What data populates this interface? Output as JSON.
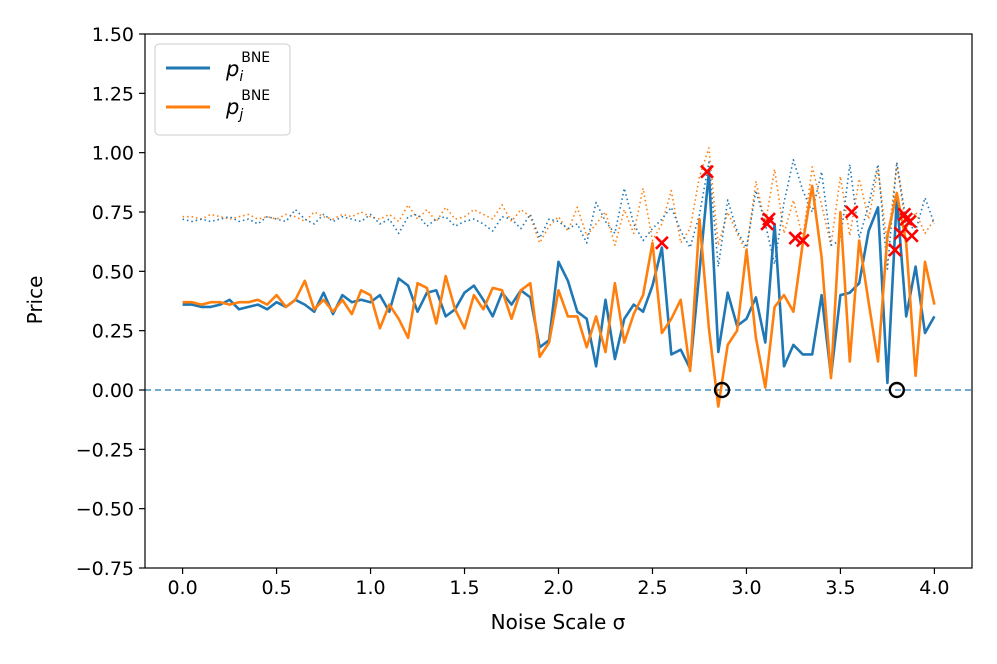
{
  "chart_data": {
    "type": "line",
    "xlabel": "Noise Scale σ",
    "ylabel": "Price",
    "xlim": [
      -0.2,
      4.2
    ],
    "ylim": [
      -0.75,
      1.5
    ],
    "xticks": [
      "0.0",
      "0.5",
      "1.0",
      "1.5",
      "2.0",
      "2.5",
      "3.0",
      "3.5",
      "4.0"
    ],
    "xtick_values": [
      0,
      0.5,
      1,
      1.5,
      2,
      2.5,
      3,
      3.5,
      4
    ],
    "yticks": [
      "1.50",
      "1.25",
      "1.00",
      "0.75",
      "0.50",
      "0.25",
      "0.00",
      "−0.25",
      "−0.50",
      "−0.75"
    ],
    "ytick_values": [
      1.5,
      1.25,
      1.0,
      0.75,
      0.5,
      0.25,
      0,
      -0.25,
      -0.5,
      -0.75
    ],
    "legend": {
      "position": "top-left",
      "entries": [
        {
          "base": "p",
          "sub": "i",
          "sup": "BNE",
          "color": "#1f77b4"
        },
        {
          "base": "p",
          "sub": "j",
          "sup": "BNE",
          "color": "#ff7f0e"
        }
      ]
    },
    "colors": {
      "blue": "#1f77b4",
      "orange": "#ff7f0e",
      "marker_x": "#ff0000",
      "marker_o": "#000000",
      "zero_line": "#1f77b4"
    },
    "series": [
      {
        "name": "p_i BNE",
        "style": "solid",
        "color": "#1f77b4",
        "x": [
          0.0,
          0.05,
          0.1,
          0.15,
          0.2,
          0.25,
          0.3,
          0.35,
          0.4,
          0.45,
          0.5,
          0.55,
          0.6,
          0.65,
          0.7,
          0.75,
          0.8,
          0.85,
          0.9,
          0.95,
          1.0,
          1.05,
          1.1,
          1.15,
          1.2,
          1.25,
          1.3,
          1.35,
          1.4,
          1.45,
          1.5,
          1.55,
          1.6,
          1.65,
          1.7,
          1.75,
          1.8,
          1.85,
          1.9,
          1.95,
          2.0,
          2.05,
          2.1,
          2.15,
          2.2,
          2.25,
          2.3,
          2.35,
          2.4,
          2.45,
          2.5,
          2.55,
          2.6,
          2.65,
          2.7,
          2.75,
          2.8,
          2.85,
          2.9,
          2.95,
          3.0,
          3.05,
          3.1,
          3.15,
          3.2,
          3.25,
          3.3,
          3.35,
          3.4,
          3.45,
          3.5,
          3.55,
          3.6,
          3.65,
          3.7,
          3.75,
          3.8,
          3.85,
          3.9,
          3.95,
          4.0
        ],
        "y": [
          0.36,
          0.36,
          0.35,
          0.35,
          0.36,
          0.38,
          0.34,
          0.35,
          0.36,
          0.34,
          0.37,
          0.35,
          0.38,
          0.36,
          0.33,
          0.41,
          0.32,
          0.4,
          0.37,
          0.38,
          0.37,
          0.4,
          0.33,
          0.47,
          0.44,
          0.33,
          0.41,
          0.42,
          0.31,
          0.34,
          0.41,
          0.44,
          0.38,
          0.31,
          0.41,
          0.36,
          0.42,
          0.39,
          0.18,
          0.21,
          0.54,
          0.46,
          0.33,
          0.3,
          0.1,
          0.38,
          0.13,
          0.3,
          0.36,
          0.33,
          0.44,
          0.6,
          0.15,
          0.17,
          0.09,
          0.5,
          0.92,
          0.16,
          0.41,
          0.27,
          0.3,
          0.39,
          0.2,
          0.7,
          0.1,
          0.19,
          0.15,
          0.15,
          0.4,
          0.06,
          0.4,
          0.41,
          0.45,
          0.67,
          0.77,
          0.03,
          0.81,
          0.31,
          0.52,
          0.24,
          0.31
        ]
      },
      {
        "name": "p_j BNE",
        "style": "solid",
        "color": "#ff7f0e",
        "x": [
          0.0,
          0.05,
          0.1,
          0.15,
          0.2,
          0.25,
          0.3,
          0.35,
          0.4,
          0.45,
          0.5,
          0.55,
          0.6,
          0.65,
          0.7,
          0.75,
          0.8,
          0.85,
          0.9,
          0.95,
          1.0,
          1.05,
          1.1,
          1.15,
          1.2,
          1.25,
          1.3,
          1.35,
          1.4,
          1.45,
          1.5,
          1.55,
          1.6,
          1.65,
          1.7,
          1.75,
          1.8,
          1.85,
          1.9,
          1.95,
          2.0,
          2.05,
          2.1,
          2.15,
          2.2,
          2.25,
          2.3,
          2.35,
          2.4,
          2.45,
          2.5,
          2.55,
          2.6,
          2.65,
          2.7,
          2.75,
          2.8,
          2.85,
          2.9,
          2.95,
          3.0,
          3.05,
          3.1,
          3.15,
          3.2,
          3.25,
          3.3,
          3.35,
          3.4,
          3.45,
          3.5,
          3.55,
          3.6,
          3.65,
          3.7,
          3.75,
          3.8,
          3.85,
          3.9,
          3.95,
          4.0
        ],
        "y": [
          0.37,
          0.37,
          0.36,
          0.37,
          0.37,
          0.36,
          0.37,
          0.37,
          0.38,
          0.36,
          0.4,
          0.35,
          0.38,
          0.46,
          0.34,
          0.38,
          0.33,
          0.38,
          0.32,
          0.42,
          0.4,
          0.26,
          0.36,
          0.3,
          0.22,
          0.45,
          0.43,
          0.28,
          0.48,
          0.34,
          0.26,
          0.4,
          0.34,
          0.43,
          0.42,
          0.3,
          0.42,
          0.45,
          0.14,
          0.2,
          0.42,
          0.31,
          0.31,
          0.18,
          0.31,
          0.16,
          0.45,
          0.2,
          0.32,
          0.4,
          0.62,
          0.24,
          0.3,
          0.38,
          0.08,
          0.72,
          0.26,
          -0.07,
          0.19,
          0.25,
          0.59,
          0.22,
          0.01,
          0.35,
          0.4,
          0.33,
          0.62,
          0.86,
          0.56,
          0.05,
          0.75,
          0.12,
          0.63,
          0.37,
          0.12,
          0.65,
          0.83,
          0.62,
          0.06,
          0.54,
          0.36
        ]
      },
      {
        "name": "p_i dotted",
        "style": "dotted",
        "color": "#1f77b4",
        "x": [
          0.0,
          0.05,
          0.1,
          0.15,
          0.2,
          0.25,
          0.3,
          0.35,
          0.4,
          0.45,
          0.5,
          0.55,
          0.6,
          0.65,
          0.7,
          0.75,
          0.8,
          0.85,
          0.9,
          0.95,
          1.0,
          1.05,
          1.1,
          1.15,
          1.2,
          1.25,
          1.3,
          1.35,
          1.4,
          1.45,
          1.5,
          1.55,
          1.6,
          1.65,
          1.7,
          1.75,
          1.8,
          1.85,
          1.9,
          1.95,
          2.0,
          2.05,
          2.1,
          2.15,
          2.2,
          2.25,
          2.3,
          2.35,
          2.4,
          2.45,
          2.5,
          2.55,
          2.6,
          2.65,
          2.7,
          2.75,
          2.8,
          2.85,
          2.9,
          2.95,
          3.0,
          3.05,
          3.1,
          3.15,
          3.2,
          3.25,
          3.3,
          3.35,
          3.4,
          3.45,
          3.5,
          3.55,
          3.6,
          3.65,
          3.7,
          3.75,
          3.8,
          3.85,
          3.9,
          3.95,
          4.0
        ],
        "y": [
          0.72,
          0.71,
          0.72,
          0.71,
          0.72,
          0.73,
          0.71,
          0.72,
          0.7,
          0.73,
          0.72,
          0.71,
          0.76,
          0.72,
          0.7,
          0.74,
          0.71,
          0.73,
          0.72,
          0.71,
          0.74,
          0.7,
          0.72,
          0.66,
          0.73,
          0.74,
          0.69,
          0.72,
          0.73,
          0.69,
          0.71,
          0.72,
          0.7,
          0.67,
          0.73,
          0.72,
          0.68,
          0.74,
          0.64,
          0.72,
          0.71,
          0.68,
          0.7,
          0.62,
          0.79,
          0.71,
          0.66,
          0.85,
          0.7,
          0.63,
          0.68,
          0.72,
          0.77,
          0.67,
          0.6,
          0.74,
          0.96,
          0.52,
          0.8,
          0.67,
          0.6,
          0.84,
          0.7,
          0.53,
          0.79,
          0.97,
          0.84,
          0.75,
          0.92,
          0.61,
          0.63,
          0.95,
          0.64,
          0.78,
          0.95,
          0.51,
          0.96,
          0.71,
          0.67,
          0.81,
          0.7
        ]
      },
      {
        "name": "p_j dotted",
        "style": "dotted",
        "color": "#ff7f0e",
        "x": [
          0.0,
          0.05,
          0.1,
          0.15,
          0.2,
          0.25,
          0.3,
          0.35,
          0.4,
          0.45,
          0.5,
          0.55,
          0.6,
          0.65,
          0.7,
          0.75,
          0.8,
          0.85,
          0.9,
          0.95,
          1.0,
          1.05,
          1.1,
          1.15,
          1.2,
          1.25,
          1.3,
          1.35,
          1.4,
          1.45,
          1.5,
          1.55,
          1.6,
          1.65,
          1.7,
          1.75,
          1.8,
          1.85,
          1.9,
          1.95,
          2.0,
          2.05,
          2.1,
          2.15,
          2.2,
          2.25,
          2.3,
          2.35,
          2.4,
          2.45,
          2.5,
          2.55,
          2.6,
          2.65,
          2.7,
          2.75,
          2.8,
          2.85,
          2.9,
          2.95,
          3.0,
          3.05,
          3.1,
          3.15,
          3.2,
          3.25,
          3.3,
          3.35,
          3.4,
          3.45,
          3.5,
          3.55,
          3.6,
          3.65,
          3.7,
          3.75,
          3.8,
          3.85,
          3.9,
          3.95,
          4.0
        ],
        "y": [
          0.73,
          0.73,
          0.72,
          0.74,
          0.73,
          0.72,
          0.73,
          0.74,
          0.72,
          0.73,
          0.72,
          0.74,
          0.73,
          0.71,
          0.75,
          0.73,
          0.72,
          0.74,
          0.73,
          0.75,
          0.73,
          0.72,
          0.74,
          0.71,
          0.78,
          0.72,
          0.76,
          0.71,
          0.77,
          0.72,
          0.73,
          0.76,
          0.74,
          0.72,
          0.78,
          0.71,
          0.76,
          0.73,
          0.62,
          0.69,
          0.73,
          0.67,
          0.77,
          0.65,
          0.7,
          0.75,
          0.61,
          0.76,
          0.66,
          0.85,
          0.63,
          0.7,
          0.84,
          0.62,
          0.68,
          0.9,
          1.02,
          0.61,
          0.75,
          0.66,
          0.58,
          0.88,
          0.7,
          0.93,
          0.66,
          0.8,
          0.64,
          0.94,
          0.78,
          0.61,
          0.9,
          0.65,
          0.89,
          0.72,
          0.93,
          0.61,
          0.95,
          0.68,
          0.75,
          0.66,
          0.72
        ]
      }
    ],
    "markers_x": {
      "color": "#ff0000",
      "points": [
        [
          2.55,
          0.62
        ],
        [
          2.79,
          0.92
        ],
        [
          3.11,
          0.7
        ],
        [
          3.12,
          0.72
        ],
        [
          3.26,
          0.64
        ],
        [
          3.3,
          0.63
        ],
        [
          3.56,
          0.75
        ],
        [
          3.79,
          0.59
        ],
        [
          3.82,
          0.66
        ],
        [
          3.84,
          0.74
        ],
        [
          3.85,
          0.72
        ],
        [
          3.87,
          0.71
        ],
        [
          3.88,
          0.65
        ]
      ]
    },
    "markers_o": {
      "color": "#000000",
      "points": [
        [
          2.87,
          0.0
        ],
        [
          3.8,
          0.0
        ]
      ]
    },
    "hline": {
      "y": 0.0,
      "style": "dashed",
      "color": "#1f77b4"
    }
  }
}
